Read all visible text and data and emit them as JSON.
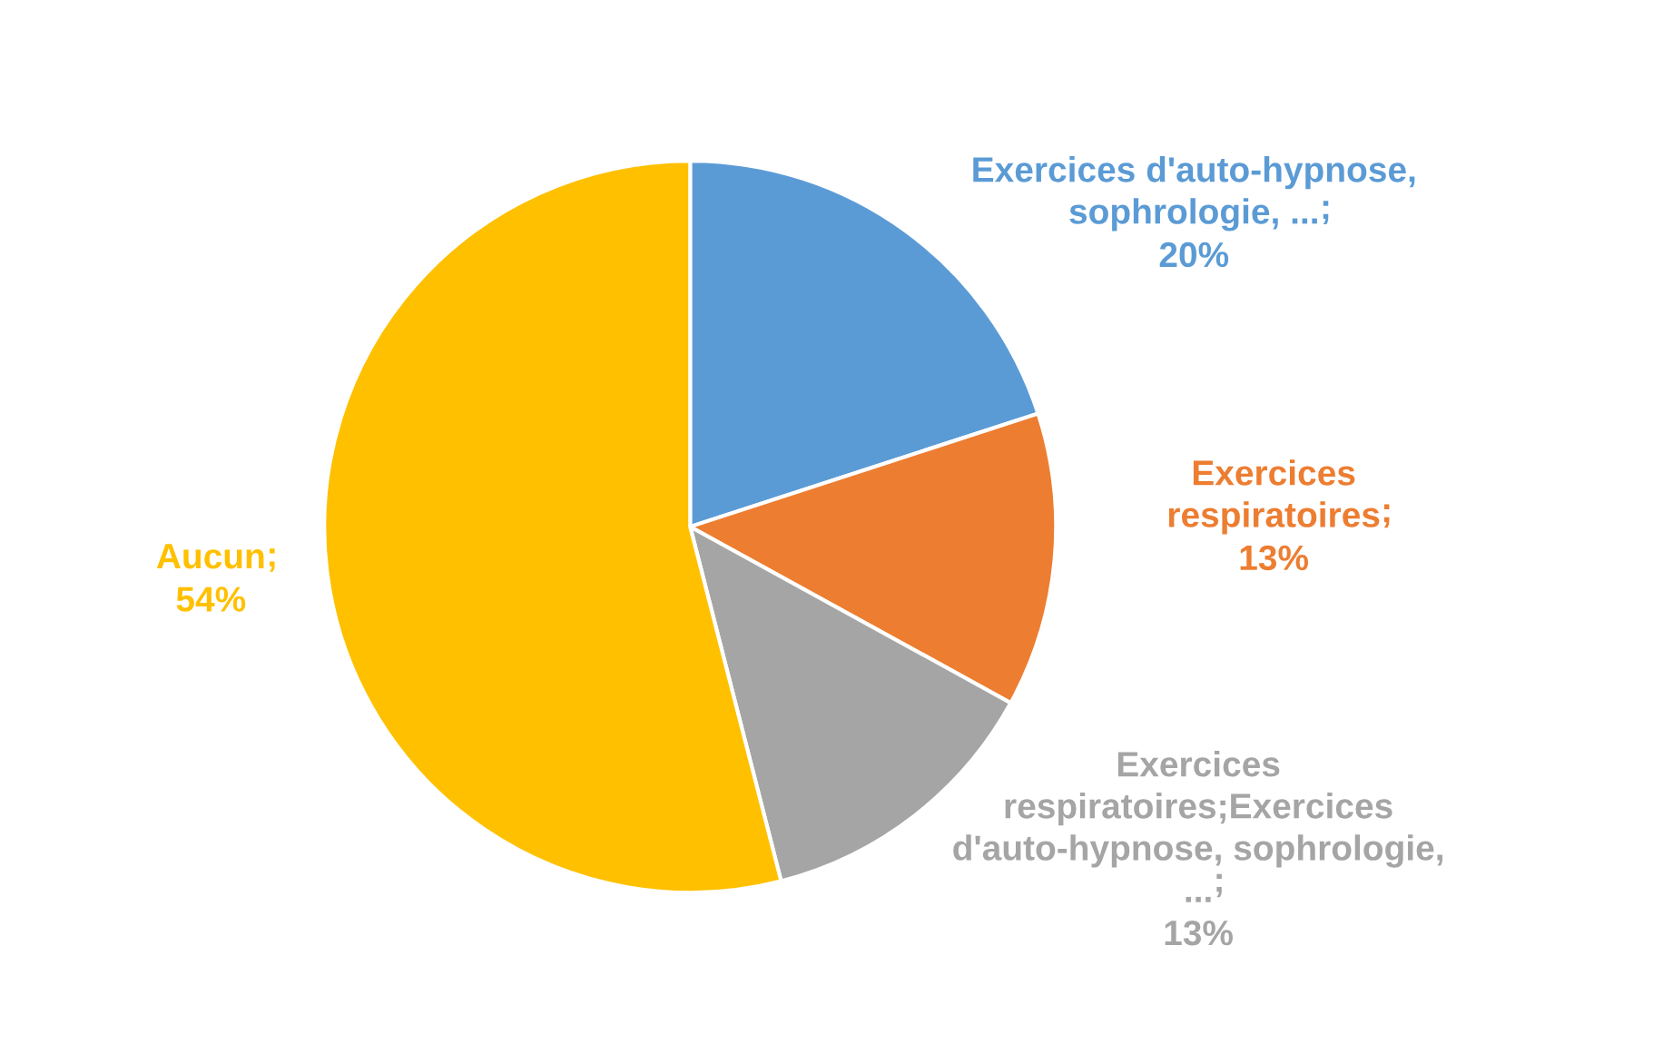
{
  "chart_data": {
    "type": "pie",
    "categories": [
      "Exercices d'auto-hypnose,\nsophrologie, ...",
      "Exercices\nrespiratoires",
      "Exercices\nrespiratoires;Exercices\nd'auto-hypnose, sophrologie,\n...",
      "Aucun"
    ],
    "values": [
      20,
      13,
      13,
      54
    ],
    "value_labels": [
      "20%",
      "13%",
      "13%",
      "54%"
    ],
    "colors": [
      "#5b9bd5",
      "#ed7d31",
      "#a5a5a5",
      "#ffc000"
    ],
    "annotations": [
      ";",
      ";",
      ";",
      ";"
    ],
    "legend": false
  }
}
